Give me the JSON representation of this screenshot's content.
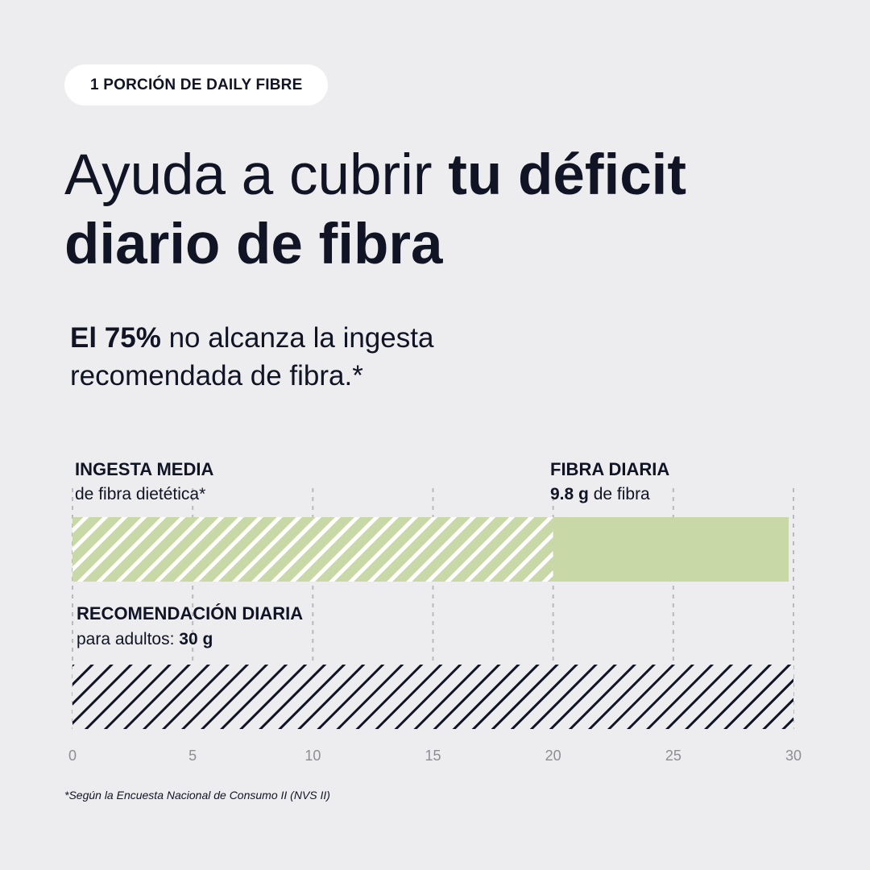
{
  "badge": "1 PORCIÓN DE DAILY FIBRE",
  "headline": {
    "part_regular": "Ayuda a cubrir ",
    "part_bold": "tu déficit diario de fibra"
  },
  "stat": {
    "bold": "El 75%",
    "rest": " no alcanza la ingesta recomendada de fibra.*"
  },
  "labels": {
    "intake_title": "INGESTA MEDIA",
    "intake_sub": "de fibra dietética*",
    "fibre_title": "FIBRA DIARIA",
    "fibre_value": "9.8 g",
    "fibre_sub": " de fibra",
    "rec_title": "RECOMENDACIÓN DIARIA",
    "rec_sub": "para adultos: ",
    "rec_value": "30 g"
  },
  "footnote": "*Según la Encuesta Nacional de Consumo II (NVS II)",
  "colors": {
    "green": "#c9d8a7",
    "ink": "#101425",
    "background": "#ededef"
  },
  "chart_data": {
    "type": "bar",
    "orientation": "horizontal",
    "xlim": [
      0,
      30
    ],
    "xticks": [
      0,
      5,
      10,
      15,
      20,
      25,
      30
    ],
    "grid": true,
    "bars": [
      {
        "segments": [
          {
            "label": "INGESTA MEDIA de fibra dietética*",
            "start": 0,
            "end": 20,
            "fill": "hatched-green"
          },
          {
            "label": "FIBRA DIARIA 9.8 g de fibra",
            "start": 20,
            "end": 29.8,
            "fill": "solid-green"
          }
        ]
      },
      {
        "segments": [
          {
            "label": "RECOMENDACIÓN DIARIA para adultos: 30 g",
            "start": 0,
            "end": 30,
            "fill": "hatched-black"
          }
        ]
      }
    ]
  }
}
